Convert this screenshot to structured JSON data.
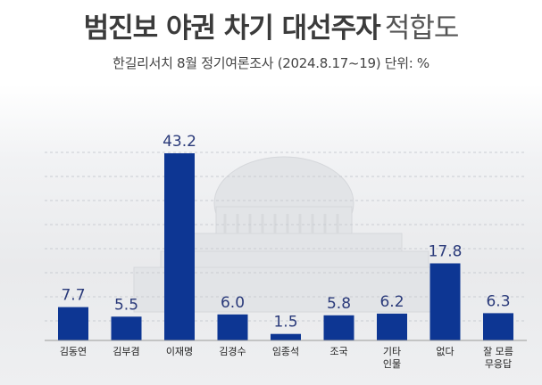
{
  "chart_data": {
    "type": "bar",
    "title_bold": "범진보 야권 차기 대선주자",
    "title_light": "적합도",
    "subtitle": "한길리서치 8월 정기여론조사 (2024.8.17~19) 단위: %",
    "categories": [
      [
        "김동연"
      ],
      [
        "김부겸"
      ],
      [
        "이재명"
      ],
      [
        "김경수"
      ],
      [
        "임종석"
      ],
      [
        "조국"
      ],
      [
        "기타",
        "인물"
      ],
      [
        "없다"
      ],
      [
        "잘 모름",
        "무응답"
      ]
    ],
    "category_names": [
      "김동연",
      "김부겸",
      "이재명",
      "김경수",
      "임종석",
      "조국",
      "기타 인물",
      "없다",
      "잘 모름 무응답"
    ],
    "values": [
      7.7,
      5.5,
      43.2,
      6.0,
      1.5,
      5.8,
      6.2,
      17.8,
      6.3
    ],
    "value_labels": [
      "7.7",
      "5.5",
      "43.2",
      "6.0",
      "1.5",
      "5.8",
      "6.2",
      "17.8",
      "6.3"
    ],
    "ylim": [
      0,
      43.2
    ],
    "bar_color": "#0d3693",
    "label_color": "#2a3a7a",
    "grid": true
  }
}
